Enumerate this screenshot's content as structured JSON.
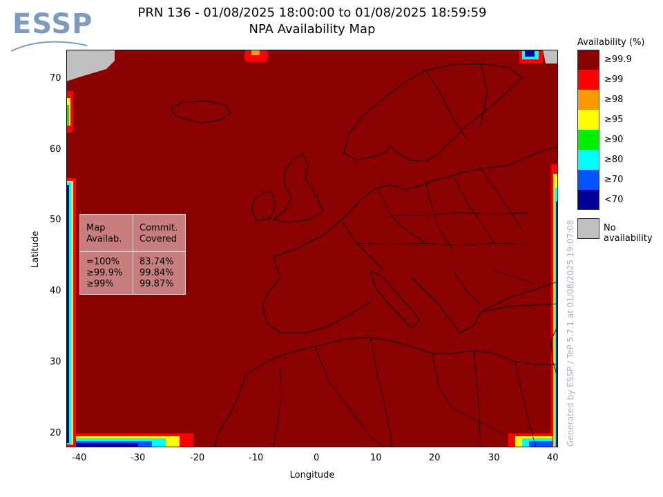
{
  "header": {
    "title_line1": "PRN 136 - 01/08/2025 18:00:00 to 01/08/2025 18:59:59",
    "title_line2": "NPA Availability Map",
    "logo_text": "ESSP"
  },
  "axes": {
    "xlabel": "Longitude",
    "ylabel": "Latitude",
    "x_ticks": [
      "-40",
      "-30",
      "-20",
      "-10",
      "0",
      "10",
      "20",
      "30",
      "40"
    ],
    "y_ticks": [
      "70",
      "60",
      "50",
      "40",
      "30",
      "20"
    ],
    "x_range": [
      -42,
      42
    ],
    "y_range": [
      18,
      74
    ]
  },
  "legend": {
    "title": "Availability (%)",
    "items": [
      {
        "label": "≥99.9",
        "color": "#8b0000"
      },
      {
        "label": "≥99",
        "color": "#ff0000"
      },
      {
        "label": "≥98",
        "color": "#ff9900"
      },
      {
        "label": "≥95",
        "color": "#ffff00"
      },
      {
        "label": "≥90",
        "color": "#00ee00"
      },
      {
        "label": "≥80",
        "color": "#00ffff"
      },
      {
        "label": "≥70",
        "color": "#0055ff"
      },
      {
        "label": "<70",
        "color": "#000099"
      }
    ],
    "no_availability_label": "No availability",
    "no_availability_color": "#c0c0c0"
  },
  "stats": {
    "col1_header": [
      "Map",
      "Availab."
    ],
    "col2_header": [
      "Commit.",
      "Covered"
    ],
    "rows": [
      {
        "threshold": "=100%",
        "covered": "83.74%"
      },
      {
        "threshold": "≥99.9%",
        "covered": "99.84%"
      },
      {
        "threshold": "≥99%",
        "covered": "99.87%"
      }
    ]
  },
  "footer": {
    "generated_note": "Generated by ESSP / TeP 5.7.1 at 01/08/2025 19:07:08"
  }
}
